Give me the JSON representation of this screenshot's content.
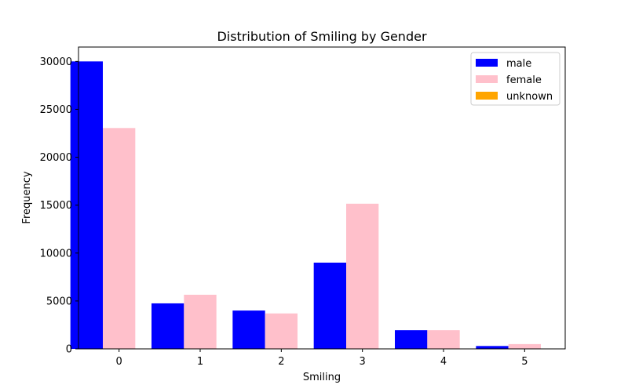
{
  "chart_data": {
    "type": "bar",
    "title": "Distribution of Smiling by Gender",
    "xlabel": "Smiling",
    "ylabel": "Frequency",
    "categories": [
      "0",
      "1",
      "2",
      "3",
      "4",
      "5"
    ],
    "series": [
      {
        "name": "male",
        "color": "#0000ff",
        "values": [
          30000,
          4750,
          4000,
          9000,
          1950,
          300
        ]
      },
      {
        "name": "female",
        "color": "#ffc0cb",
        "values": [
          23050,
          5650,
          3700,
          15150,
          1950,
          500
        ]
      },
      {
        "name": "unknown",
        "color": "#ffa500",
        "values": [
          0,
          0,
          0,
          0,
          0,
          0
        ]
      }
    ],
    "yticks": [
      0,
      5000,
      10000,
      15000,
      20000,
      25000,
      30000
    ],
    "ylim": [
      0,
      31500
    ],
    "xlim": [
      -0.5,
      5.5
    ],
    "grid": false,
    "legend_position": "top-right"
  }
}
